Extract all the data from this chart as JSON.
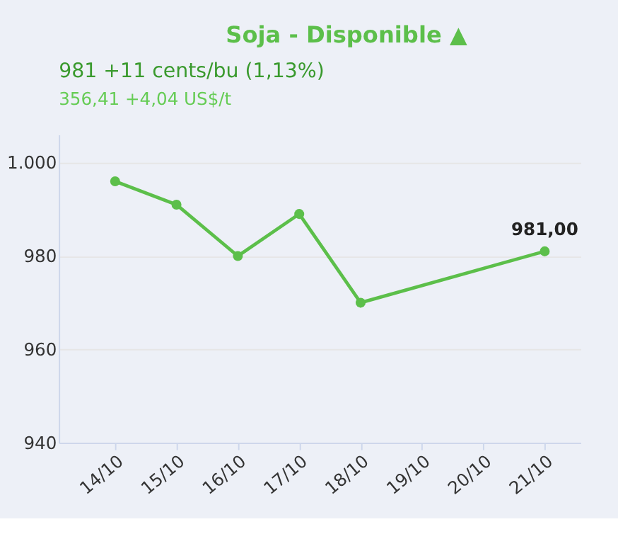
{
  "chart_data": {
    "type": "line",
    "title": "Soja - Disponible ▲",
    "subtitle": "981 +11 cents/bu (1,13%)",
    "annotations": [
      "356,41 +4,04 US$/t"
    ],
    "x": [
      "--10-14",
      "--10-15",
      "--10-16",
      "--10-17",
      "--10-18",
      "--10-21"
    ],
    "series": [
      {
        "color": "#5cbf4a",
        "values": [
          996,
          991,
          980,
          989,
          970,
          981
        ],
        "value_labels": [
          null,
          null,
          null,
          null,
          null,
          "981,00"
        ]
      }
    ],
    "xlim": [
      "--10-13T02:00",
      "--10-21T14:00"
    ],
    "xticks": [
      {
        "value": "--10-14",
        "label": "14/10"
      },
      {
        "value": "--10-15",
        "label": "15/10"
      },
      {
        "value": "--10-16",
        "label": "16/10"
      },
      {
        "value": "--10-17",
        "label": "17/10"
      },
      {
        "value": "--10-18",
        "label": "18/10"
      },
      {
        "value": "--10-19",
        "label": "19/10"
      },
      {
        "value": "--10-20",
        "label": "20/10"
      },
      {
        "value": "--10-21",
        "label": "21/10"
      }
    ],
    "ylim": [
      940,
      1006
    ],
    "yticks": [
      {
        "value": 940,
        "label": "940"
      },
      {
        "value": 960,
        "label": "960"
      },
      {
        "value": 980,
        "label": "980"
      },
      {
        "value": 1000,
        "label": "1.000"
      }
    ],
    "grid": "y",
    "marker": "circle",
    "line_style": "solid"
  }
}
